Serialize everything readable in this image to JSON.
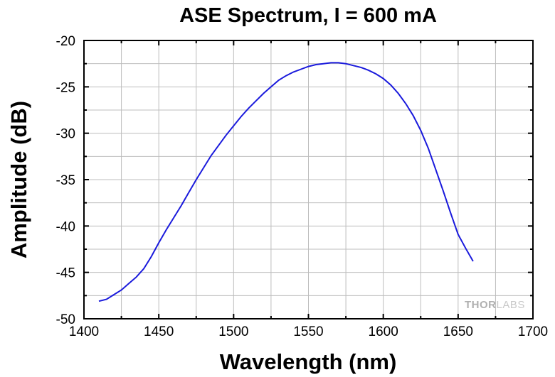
{
  "chart_data": {
    "type": "line",
    "title": "ASE Spectrum, I = 600 mA",
    "xlabel": "Wavelength (nm)",
    "ylabel": "Amplitude (dB)",
    "xlim": [
      1400,
      1700
    ],
    "ylim": [
      -50,
      -20
    ],
    "xticks": [
      1400,
      1450,
      1500,
      1550,
      1600,
      1650,
      1700
    ],
    "yticks": [
      -20,
      -25,
      -30,
      -35,
      -40,
      -45,
      -50
    ],
    "grid": true,
    "legend": "none",
    "series_color": "#1a1adc",
    "series": [
      {
        "x": [
          1410,
          1415,
          1420,
          1425,
          1430,
          1435,
          1440,
          1445,
          1450,
          1455,
          1460,
          1465,
          1470,
          1475,
          1480,
          1485,
          1490,
          1495,
          1500,
          1505,
          1510,
          1515,
          1520,
          1525,
          1530,
          1535,
          1540,
          1545,
          1550,
          1555,
          1560,
          1565,
          1570,
          1575,
          1580,
          1585,
          1590,
          1595,
          1600,
          1605,
          1610,
          1615,
          1620,
          1625,
          1630,
          1635,
          1640,
          1645,
          1650,
          1655,
          1660
        ],
        "y": [
          -48.1,
          -47.9,
          -47.4,
          -46.9,
          -46.2,
          -45.5,
          -44.6,
          -43.3,
          -41.8,
          -40.4,
          -39.1,
          -37.8,
          -36.4,
          -35.0,
          -33.7,
          -32.4,
          -31.3,
          -30.2,
          -29.2,
          -28.2,
          -27.3,
          -26.5,
          -25.7,
          -25.0,
          -24.3,
          -23.8,
          -23.4,
          -23.1,
          -22.8,
          -22.6,
          -22.5,
          -22.4,
          -22.4,
          -22.5,
          -22.7,
          -22.9,
          -23.2,
          -23.6,
          -24.1,
          -24.8,
          -25.7,
          -26.8,
          -28.1,
          -29.7,
          -31.6,
          -33.9,
          -36.2,
          -38.6,
          -40.9,
          -42.4,
          -43.8
        ]
      }
    ],
    "watermark": {
      "part1": "THOR",
      "part2": "LABS"
    }
  }
}
